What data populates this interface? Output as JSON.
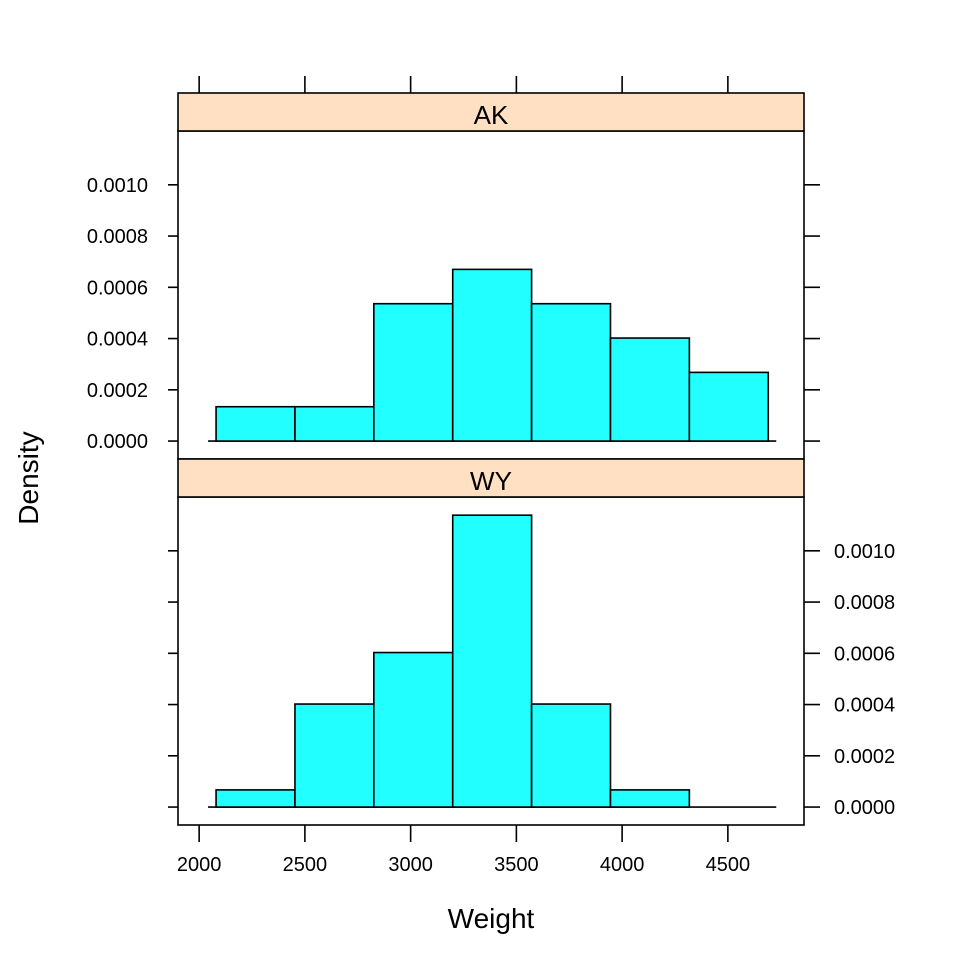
{
  "chart_data": {
    "type": "bar",
    "xlabel": "Weight",
    "ylabel": "Density",
    "x_ticks": [
      2000,
      2500,
      3000,
      3500,
      4000,
      4500
    ],
    "y_ticks": [
      "0.0000",
      "0.0002",
      "0.0004",
      "0.0006",
      "0.0008",
      "0.0010"
    ],
    "xlim": [
      1900,
      4860
    ],
    "ylim": [
      -7e-05,
      0.00121
    ],
    "bar_color": "#22ffff",
    "strip_color": "#ffe0c2",
    "bin_edges": [
      2080,
      2453,
      2826,
      3199,
      3572,
      3945,
      4318,
      4691
    ],
    "panels": [
      {
        "label": "AK",
        "y_axis_side": "left",
        "values": [
          0.000134,
          0.000134,
          0.000536,
          0.00067,
          0.000536,
          0.000402,
          0.000268
        ]
      },
      {
        "label": "WY",
        "y_axis_side": "right",
        "values": [
          6.7e-05,
          0.000402,
          0.000603,
          0.001139,
          0.000402,
          6.7e-05,
          0.0
        ]
      }
    ]
  }
}
